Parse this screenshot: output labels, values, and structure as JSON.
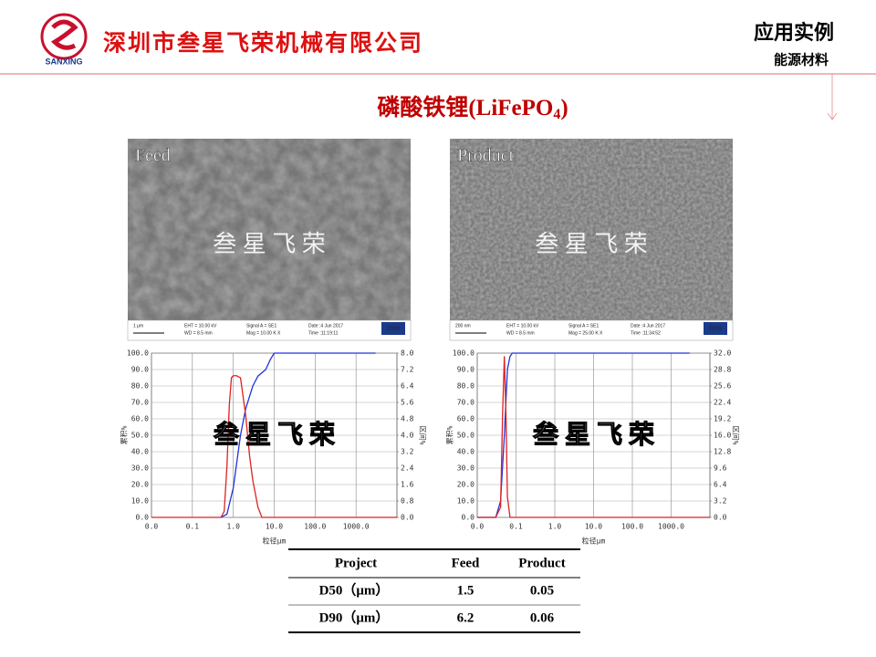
{
  "header": {
    "logo_text": "SANXING",
    "company": "深圳市叁星飞荣机械有限公司",
    "section": "应用实例",
    "subsection": "能源材料"
  },
  "title": {
    "text": "磷酸铁锂(LiFePO",
    "subscript": "4",
    "close": ")"
  },
  "images": [
    {
      "label": "Feed",
      "watermark": "叁 星 飞 荣",
      "scale_bar": "1 μm",
      "info": [
        "EHT = 10.00 kV",
        "WD = 8.5 mm",
        "Signal A = SE1",
        "Mag = 10.00 K X",
        "Date :4 Jun 2017",
        "Time :11:19:11"
      ],
      "brand": "ZEISS"
    },
    {
      "label": "Product",
      "watermark": "叁 星 飞 荣",
      "scale_bar": "200 nm",
      "info": [
        "EHT = 10.00 kV",
        "WD = 8.5 mm",
        "Signal A = SE1",
        "Mag = 25.00 K X",
        "Date :4 Jun 2017",
        "Time :11:34:52"
      ],
      "brand": "ZEISS"
    }
  ],
  "chart_data": [
    {
      "type": "line",
      "watermark": "叁 星 飞 荣",
      "xlabel": "粒径μm",
      "ylabel": "累积%",
      "y2label": "区间%",
      "xscale": "log",
      "grid": true,
      "xlim": [
        0.01,
        10000
      ],
      "xticks": [
        {
          "value": 0.01,
          "label": "0.0"
        },
        0.1,
        {
          "value": 1,
          "label": "1.0"
        },
        {
          "value": 10,
          "label": "10.0"
        },
        {
          "value": 100,
          "label": "100.0"
        },
        {
          "value": 1000,
          "label": "1000.0"
        }
      ],
      "ylim": [
        0,
        100
      ],
      "yticks": [
        {
          "value": 0,
          "label": "0.0"
        },
        {
          "value": 10,
          "label": "10.0"
        },
        {
          "value": 20,
          "label": "20.0"
        },
        {
          "value": 30,
          "label": "30.0"
        },
        {
          "value": 40,
          "label": "40.0"
        },
        {
          "value": 50,
          "label": "50.0"
        },
        {
          "value": 60,
          "label": "60.0"
        },
        {
          "value": 70,
          "label": "70.0"
        },
        {
          "value": 80,
          "label": "80.0"
        },
        {
          "value": 90,
          "label": "90.0"
        },
        {
          "value": 100,
          "label": "100.0"
        }
      ],
      "y2lim": [
        0,
        8
      ],
      "y2ticks": [
        {
          "value": 0,
          "label": "0.0"
        },
        0.8,
        1.6,
        2.4,
        3.2,
        {
          "value": 4,
          "label": "4.0"
        },
        4.8,
        5.6,
        6.4,
        7.2,
        {
          "value": 8,
          "label": "8.0"
        }
      ],
      "series": [
        {
          "color": "#2233dd",
          "x": [
            0.5,
            0.7,
            1,
            1.5,
            2,
            3,
            4,
            6.2,
            8,
            10,
            3000
          ],
          "values": [
            0,
            2,
            18,
            50,
            66,
            80,
            86,
            90,
            96,
            100,
            100
          ]
        },
        {
          "color": "#dd2222",
          "axis": "y2",
          "x": [
            0.01,
            0.5,
            0.6,
            0.7,
            0.8,
            0.9,
            1,
            1.2,
            1.5,
            2,
            2.5,
            3,
            4,
            5,
            10000
          ],
          "values": [
            0,
            0,
            0.3,
            2.5,
            5.5,
            6.8,
            6.9,
            6.9,
            6.8,
            5,
            3,
            1.8,
            0.5,
            0,
            0
          ]
        }
      ]
    },
    {
      "type": "line",
      "watermark": "叁 星 飞 荣",
      "xlabel": "粒径μm",
      "ylabel": "累积%",
      "y2label": "区间%",
      "xscale": "log",
      "grid": true,
      "xlim": [
        0.01,
        10000
      ],
      "xticks": [
        {
          "value": 0.01,
          "label": "0.0"
        },
        0.1,
        {
          "value": 1,
          "label": "1.0"
        },
        {
          "value": 10,
          "label": "10.0"
        },
        {
          "value": 100,
          "label": "100.0"
        },
        {
          "value": 1000,
          "label": "1000.0"
        }
      ],
      "ylim": [
        0,
        100
      ],
      "yticks": [
        {
          "value": 0,
          "label": "0.0"
        },
        {
          "value": 10,
          "label": "10.0"
        },
        {
          "value": 20,
          "label": "20.0"
        },
        {
          "value": 30,
          "label": "30.0"
        },
        {
          "value": 40,
          "label": "40.0"
        },
        {
          "value": 50,
          "label": "50.0"
        },
        {
          "value": 60,
          "label": "60.0"
        },
        {
          "value": 70,
          "label": "70.0"
        },
        {
          "value": 80,
          "label": "80.0"
        },
        {
          "value": 90,
          "label": "90.0"
        },
        {
          "value": 100,
          "label": "100.0"
        }
      ],
      "y2lim": [
        0,
        32
      ],
      "y2ticks": [
        {
          "value": 0,
          "label": "0.0"
        },
        3.2,
        6.4,
        9.6,
        12.8,
        {
          "value": 16,
          "label": "16.0"
        },
        19.2,
        22.4,
        25.6,
        28.8,
        {
          "value": 32,
          "label": "32.0"
        }
      ],
      "series": [
        {
          "color": "#2233dd",
          "x": [
            0.01,
            0.03,
            0.04,
            0.05,
            0.06,
            0.07,
            0.08,
            0.1,
            3000
          ],
          "values": [
            0,
            0,
            10,
            50,
            90,
            98,
            100,
            100,
            100
          ]
        },
        {
          "color": "#dd2222",
          "axis": "y2",
          "x": [
            0.01,
            0.03,
            0.04,
            0.045,
            0.05,
            0.055,
            0.06,
            0.07,
            0.08,
            10000
          ],
          "values": [
            0,
            0,
            2,
            20,
            31.4,
            20,
            4,
            0,
            0,
            0
          ]
        }
      ]
    }
  ],
  "table": {
    "header": [
      "Project",
      "Feed",
      "Product"
    ],
    "rows": [
      [
        "D50（μm）",
        "1.5",
        "0.05"
      ],
      [
        "D90（μm）",
        "6.2",
        "0.06"
      ]
    ]
  }
}
